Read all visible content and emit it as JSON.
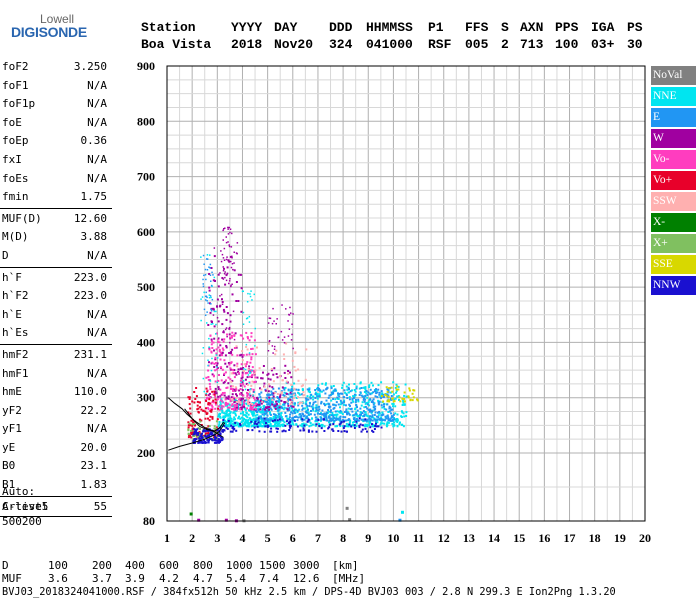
{
  "logo": {
    "line1": "Lowell",
    "line2": "DIGISONDE"
  },
  "header": {
    "labels": [
      "Station",
      "YYYY",
      "DAY",
      "DDD",
      "HHMMSS",
      "P1",
      "FFS",
      "S",
      "AXN",
      "PPS",
      "IGA",
      "PS"
    ],
    "values": [
      "Boa Vista",
      "2018",
      "Nov20",
      "324",
      "041000",
      "RSF",
      "005",
      "2",
      "713",
      "100",
      "03+",
      "30"
    ]
  },
  "params": {
    "group1": [
      {
        "key": "foF2",
        "value": "3.250"
      },
      {
        "key": "foF1",
        "value": "N/A"
      },
      {
        "key": "foF1p",
        "value": "N/A"
      },
      {
        "key": "foE",
        "value": "N/A"
      },
      {
        "key": "foEp",
        "value": "0.36"
      },
      {
        "key": "fxI",
        "value": "N/A"
      },
      {
        "key": "foEs",
        "value": "N/A"
      },
      {
        "key": "fmin",
        "value": "1.75"
      }
    ],
    "group2": [
      {
        "key": "MUF(D)",
        "value": "12.60"
      },
      {
        "key": "M(D)",
        "value": "3.88"
      },
      {
        "key": "D",
        "value": "N/A"
      }
    ],
    "group3": [
      {
        "key": "h`F",
        "value": "223.0"
      },
      {
        "key": "h`F2",
        "value": "223.0"
      },
      {
        "key": "h`E",
        "value": "N/A"
      },
      {
        "key": "h`Es",
        "value": "N/A"
      }
    ],
    "group4": [
      {
        "key": "hmF2",
        "value": "231.1"
      },
      {
        "key": "hmF1",
        "value": "N/A"
      },
      {
        "key": "hmE",
        "value": "110.0"
      },
      {
        "key": "yF2",
        "value": "22.2"
      },
      {
        "key": "yF1",
        "value": "N/A"
      },
      {
        "key": "yE",
        "value": "20.0"
      },
      {
        "key": "B0",
        "value": "23.1"
      },
      {
        "key": "B1",
        "value": "1.83"
      }
    ],
    "group5": [
      {
        "key": "C-level",
        "value": "55"
      }
    ]
  },
  "auto": {
    "line1": "Auto:",
    "line2": "Artist5",
    "line3": "500200"
  },
  "legend": [
    {
      "label": "NoVal",
      "color": "#808080"
    },
    {
      "label": "NNE",
      "color": "#00e5f0"
    },
    {
      "label": "E",
      "color": "#2196f3"
    },
    {
      "label": "W",
      "color": "#a000a0"
    },
    {
      "label": "Vo-",
      "color": "#ff3dbf"
    },
    {
      "label": "Vo+",
      "color": "#e8002a"
    },
    {
      "label": "SSW",
      "color": "#ffb0b0"
    },
    {
      "label": "X-",
      "color": "#008000"
    },
    {
      "label": "X+",
      "color": "#80c060"
    },
    {
      "label": "SSE",
      "color": "#d8d800"
    },
    {
      "label": "NNW",
      "color": "#1a10d0"
    }
  ],
  "footer": {
    "d_label": "D",
    "d_values": [
      "100",
      "200",
      "400",
      "600",
      "800",
      "1000",
      "1500",
      "3000",
      "[km]"
    ],
    "muf_label": "MUF",
    "muf_values": [
      "3.6",
      "3.7",
      "3.9",
      "4.2",
      "4.7",
      "5.4",
      "7.4",
      "12.6",
      "[MHz]"
    ],
    "info": "BVJ03_2018324041000.RSF / 384fx512h 50 kHz 2.5 km / DPS-4D BVJ03 003 / 2.8 N 299.3 E Ion2Png 1.3.20"
  },
  "chart_data": {
    "type": "scatter",
    "x_ticks": [
      "1",
      "2",
      "3",
      "4",
      "5",
      "6",
      "7",
      "8",
      "9",
      "10",
      "11",
      "12",
      "13",
      "14",
      "15",
      "16",
      "17",
      "18",
      "19",
      "20"
    ],
    "y_ticks": [
      "80",
      "200",
      "300",
      "400",
      "500",
      "600",
      "700",
      "800",
      "900"
    ],
    "xlim": [
      1,
      20
    ],
    "ylim": [
      80,
      900
    ],
    "grid": true,
    "legend_position": "right",
    "series": [
      {
        "name": "NNE",
        "clusters": [
          {
            "x": [
              5.5,
              10.5
            ],
            "y": [
              250,
              330
            ]
          },
          {
            "x": [
              3.0,
              5.5
            ],
            "y": [
              250,
              300
            ]
          }
        ]
      },
      {
        "name": "E",
        "clusters": [
          {
            "x": [
              4.5,
              10.0
            ],
            "y": [
              260,
              320
            ]
          }
        ]
      },
      {
        "name": "W",
        "clusters": [
          {
            "x": [
              2.6,
              4.0
            ],
            "y": [
              300,
              560
            ]
          },
          {
            "x": [
              3.5,
              6.0
            ],
            "y": [
              280,
              360
            ]
          }
        ]
      },
      {
        "name": "Vo-",
        "clusters": [
          {
            "x": [
              2.5,
              4.5
            ],
            "y": [
              280,
              420
            ]
          }
        ]
      },
      {
        "name": "Vo+",
        "clusters": [
          {
            "x": [
              1.8,
              3.0
            ],
            "y": [
              230,
              320
            ]
          }
        ]
      },
      {
        "name": "SSW",
        "clusters": [
          {
            "x": [
              3.5,
              6.5
            ],
            "y": [
              290,
              400
            ]
          }
        ]
      },
      {
        "name": "X+",
        "clusters": [
          {
            "x": [
              1.8,
              3.0
            ],
            "y": [
              225,
              260
            ]
          }
        ]
      },
      {
        "name": "SSE",
        "clusters": [
          {
            "x": [
              9.5,
              11.0
            ],
            "y": [
              295,
              325
            ]
          }
        ]
      },
      {
        "name": "NNW",
        "clusters": [
          {
            "x": [
              3.0,
              9.5
            ],
            "y": [
              240,
              265
            ]
          },
          {
            "x": [
              2.0,
              3.2
            ],
            "y": [
              220,
              245
            ]
          }
        ]
      }
    ]
  }
}
